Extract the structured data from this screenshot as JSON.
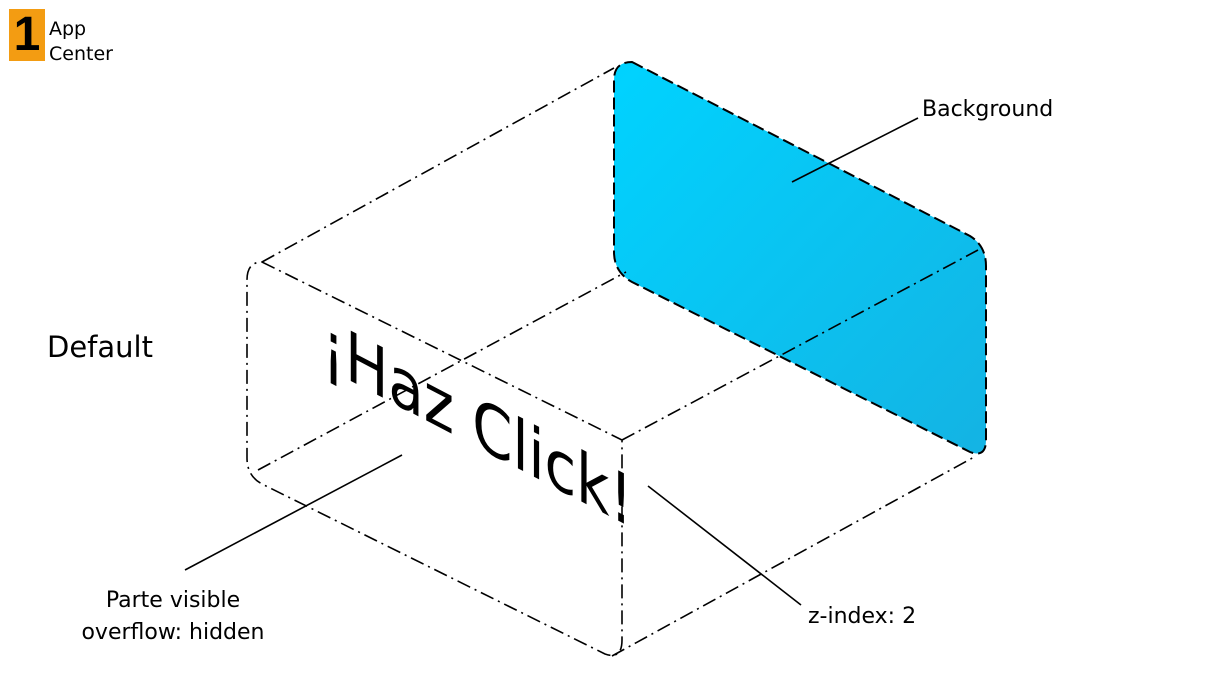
{
  "logo": {
    "mark": "1",
    "line1": "App",
    "line2": "Center",
    "color": "#f39c12"
  },
  "labels": {
    "default": "Default",
    "background": "Background",
    "zindex": "z-index: 2",
    "parte_line1": "Parte visible",
    "parte_line2": "overflow: hidden"
  },
  "button_text": "¡Haz Click!",
  "colors": {
    "background_panel": "#00cfff",
    "panel_gradient_end": "#14b3e3",
    "outline": "#000000"
  }
}
